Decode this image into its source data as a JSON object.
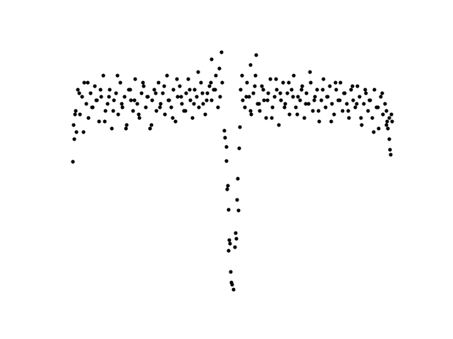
{
  "chart_data": {
    "type": "scatter",
    "color": "#000000",
    "xlim": [
      0,
      496
    ],
    "ylim": [
      0,
      369
    ],
    "x": [
      24,
      27,
      30,
      33,
      36,
      39,
      42,
      45,
      48,
      51,
      54,
      57,
      60,
      63,
      66,
      69,
      72,
      75,
      78,
      81,
      84,
      87,
      90,
      93,
      96,
      99,
      102,
      105,
      108,
      111,
      114,
      117,
      120,
      123,
      126,
      129,
      132,
      135,
      138,
      141,
      144,
      147,
      150,
      153,
      156,
      159,
      162,
      165,
      168,
      171,
      174,
      177,
      180,
      183,
      186,
      189,
      192,
      195,
      198,
      201,
      204,
      207,
      210,
      213,
      216,
      219,
      222,
      225,
      228,
      231,
      234,
      26,
      32,
      38,
      44,
      50,
      56,
      62,
      68,
      74,
      80,
      86,
      92,
      98,
      104,
      110,
      116,
      122,
      128,
      134,
      140,
      146,
      152,
      158,
      164,
      170,
      176,
      182,
      188,
      194,
      200,
      206,
      212,
      218,
      224,
      230,
      260,
      263,
      266,
      269,
      272,
      275,
      278,
      281,
      284,
      287,
      290,
      293,
      296,
      299,
      302,
      305,
      308,
      311,
      314,
      317,
      320,
      323,
      326,
      329,
      332,
      335,
      338,
      341,
      344,
      347,
      350,
      353,
      356,
      359,
      362,
      365,
      368,
      371,
      374,
      377,
      380,
      383,
      386,
      389,
      392,
      395,
      398,
      401,
      404,
      407,
      410,
      413,
      416,
      419,
      422,
      425,
      428,
      431,
      434,
      437,
      440,
      443,
      446,
      449,
      452,
      455,
      458,
      461,
      464,
      467,
      470,
      262,
      268,
      274,
      280,
      286,
      292,
      298,
      304,
      310,
      316,
      322,
      328,
      334,
      340,
      346,
      352,
      358,
      364,
      370,
      376,
      382,
      388,
      394,
      400,
      406,
      412,
      418,
      424,
      430,
      436,
      442,
      448,
      454,
      460,
      466,
      23,
      25,
      28,
      470,
      471,
      472,
      473,
      474,
      466,
      468,
      237,
      238,
      240,
      240,
      242,
      241,
      243,
      244,
      243,
      245,
      246,
      247,
      248,
      250,
      252,
      253,
      254,
      255,
      256,
      257,
      258,
      259,
      219,
      233,
      282,
      274
    ],
    "values": [
      250,
      270,
      300,
      265,
      290,
      310,
      280,
      260,
      295,
      275,
      305,
      285,
      255,
      290,
      320,
      270,
      280,
      300,
      245,
      285,
      295,
      265,
      310,
      275,
      290,
      250,
      300,
      285,
      270,
      315,
      280,
      260,
      295,
      305,
      275,
      290,
      245,
      285,
      300,
      270,
      310,
      280,
      295,
      265,
      320,
      285,
      275,
      300,
      255,
      290,
      305,
      280,
      270,
      295,
      315,
      285,
      260,
      300,
      290,
      275,
      310,
      280,
      265,
      295,
      305,
      285,
      300,
      320,
      275,
      290,
      310,
      265,
      295,
      240,
      310,
      275,
      285,
      300,
      255,
      290,
      270,
      320,
      280,
      245,
      300,
      285,
      265,
      310,
      290,
      250,
      295,
      275,
      305,
      285,
      260,
      315,
      290,
      270,
      300,
      280,
      325,
      295,
      285,
      310,
      300,
      330,
      300,
      285,
      275,
      310,
      290,
      265,
      295,
      320,
      280,
      270,
      305,
      285,
      260,
      295,
      315,
      275,
      290,
      300,
      250,
      285,
      310,
      280,
      295,
      265,
      300,
      320,
      275,
      290,
      285,
      305,
      260,
      295,
      280,
      310,
      270,
      290,
      300,
      255,
      285,
      315,
      275,
      290,
      305,
      280,
      265,
      300,
      285,
      310,
      270,
      295,
      280,
      260,
      300,
      285,
      275,
      305,
      290,
      250,
      280,
      295,
      270,
      285,
      260,
      300,
      275,
      245,
      290,
      265,
      280,
      255,
      260,
      320,
      290,
      270,
      305,
      280,
      300,
      285,
      260,
      315,
      295,
      275,
      310,
      290,
      265,
      300,
      280,
      325,
      285,
      270,
      300,
      290,
      255,
      310,
      285,
      295,
      270,
      305,
      280,
      260,
      300,
      285,
      240,
      275,
      295,
      250,
      198,
      230,
      240,
      230,
      215,
      208,
      265,
      255,
      270,
      245,
      242,
      232,
      219,
      199,
      164,
      159,
      130,
      87,
      72,
      82,
      42,
      27,
      24,
      17,
      77,
      97,
      89,
      144,
      174,
      129,
      217,
      247,
      343,
      353,
      349,
      335
    ]
  }
}
